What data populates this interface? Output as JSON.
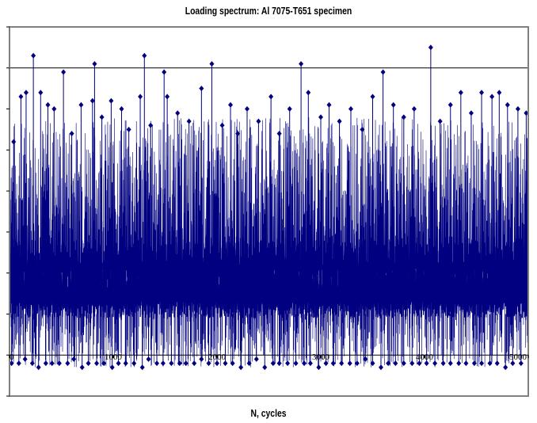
{
  "chart_data": {
    "type": "line",
    "title": "Loading spectrum: Al 7075-T651 specimen",
    "xlabel": "N, cycles",
    "ylabel": "",
    "xlim": [
      0,
      5000
    ],
    "ylim": [
      -1,
      8
    ],
    "x_ticks": [
      0,
      1000,
      2000,
      3000,
      4000,
      5000
    ],
    "x_tick_labels": [
      "0",
      "1000",
      "2000",
      "3000",
      "4000",
      "5000"
    ],
    "y_ticks": [
      -1,
      0,
      1,
      2,
      3,
      4,
      5,
      6,
      7,
      8
    ],
    "y_gridlines": [
      7,
      8
    ],
    "grid": "horizontal",
    "series": [
      {
        "color": "#000080",
        "marker": "diamond",
        "peaks": [
          {
            "x": 40,
            "y": 5.2
          },
          {
            "x": 110,
            "y": 6.3
          },
          {
            "x": 160,
            "y": 6.4
          },
          {
            "x": 230,
            "y": 7.3
          },
          {
            "x": 300,
            "y": 6.4
          },
          {
            "x": 370,
            "y": 6.1
          },
          {
            "x": 430,
            "y": 6.0
          },
          {
            "x": 520,
            "y": 6.9
          },
          {
            "x": 600,
            "y": 5.4
          },
          {
            "x": 690,
            "y": 6.1
          },
          {
            "x": 800,
            "y": 6.2
          },
          {
            "x": 820,
            "y": 7.1
          },
          {
            "x": 890,
            "y": 5.8
          },
          {
            "x": 980,
            "y": 6.2
          },
          {
            "x": 1080,
            "y": 6.0
          },
          {
            "x": 1150,
            "y": 5.5
          },
          {
            "x": 1260,
            "y": 6.3
          },
          {
            "x": 1300,
            "y": 7.3
          },
          {
            "x": 1360,
            "y": 5.6
          },
          {
            "x": 1490,
            "y": 6.9
          },
          {
            "x": 1520,
            "y": 6.3
          },
          {
            "x": 1620,
            "y": 5.9
          },
          {
            "x": 1730,
            "y": 5.7
          },
          {
            "x": 1850,
            "y": 6.5
          },
          {
            "x": 1950,
            "y": 7.1
          },
          {
            "x": 2050,
            "y": 5.6
          },
          {
            "x": 2130,
            "y": 6.1
          },
          {
            "x": 2200,
            "y": 5.4
          },
          {
            "x": 2290,
            "y": 6.0
          },
          {
            "x": 2400,
            "y": 5.7
          },
          {
            "x": 2520,
            "y": 6.3
          },
          {
            "x": 2600,
            "y": 5.4
          },
          {
            "x": 2700,
            "y": 6.0
          },
          {
            "x": 2810,
            "y": 7.1
          },
          {
            "x": 2880,
            "y": 6.4
          },
          {
            "x": 3000,
            "y": 5.8
          },
          {
            "x": 3080,
            "y": 6.1
          },
          {
            "x": 3180,
            "y": 5.7
          },
          {
            "x": 3290,
            "y": 6.0
          },
          {
            "x": 3400,
            "y": 5.5
          },
          {
            "x": 3500,
            "y": 6.3
          },
          {
            "x": 3600,
            "y": 6.9
          },
          {
            "x": 3700,
            "y": 6.1
          },
          {
            "x": 3800,
            "y": 5.8
          },
          {
            "x": 3900,
            "y": 6.0
          },
          {
            "x": 4060,
            "y": 7.5
          },
          {
            "x": 4150,
            "y": 5.7
          },
          {
            "x": 4250,
            "y": 6.1
          },
          {
            "x": 4350,
            "y": 6.4
          },
          {
            "x": 4450,
            "y": 5.9
          },
          {
            "x": 4550,
            "y": 6.4
          },
          {
            "x": 4650,
            "y": 6.3
          },
          {
            "x": 4720,
            "y": 6.4
          },
          {
            "x": 4800,
            "y": 6.1
          },
          {
            "x": 4900,
            "y": 6.0
          },
          {
            "x": 4980,
            "y": 5.9
          }
        ],
        "troughs": [
          {
            "x": 20,
            "y": -0.2
          },
          {
            "x": 90,
            "y": -0.2
          },
          {
            "x": 150,
            "y": -0.1
          },
          {
            "x": 220,
            "y": -0.2
          },
          {
            "x": 280,
            "y": -0.3
          },
          {
            "x": 350,
            "y": -0.2
          },
          {
            "x": 410,
            "y": -0.2
          },
          {
            "x": 480,
            "y": -0.2
          },
          {
            "x": 560,
            "y": -0.2
          },
          {
            "x": 620,
            "y": -0.1
          },
          {
            "x": 700,
            "y": -0.3
          },
          {
            "x": 760,
            "y": -0.2
          },
          {
            "x": 840,
            "y": -0.2
          },
          {
            "x": 910,
            "y": -0.2
          },
          {
            "x": 990,
            "y": -0.3
          },
          {
            "x": 1050,
            "y": -0.2
          },
          {
            "x": 1120,
            "y": -0.2
          },
          {
            "x": 1200,
            "y": -0.2
          },
          {
            "x": 1280,
            "y": -0.3
          },
          {
            "x": 1340,
            "y": -0.1
          },
          {
            "x": 1420,
            "y": -0.2
          },
          {
            "x": 1480,
            "y": -0.2
          },
          {
            "x": 1560,
            "y": -0.2
          },
          {
            "x": 1640,
            "y": -0.2
          },
          {
            "x": 1700,
            "y": -0.2
          },
          {
            "x": 1780,
            "y": -0.2
          },
          {
            "x": 1850,
            "y": -0.1
          },
          {
            "x": 1920,
            "y": -0.2
          },
          {
            "x": 2000,
            "y": -0.2
          },
          {
            "x": 2080,
            "y": -0.2
          },
          {
            "x": 2150,
            "y": -0.2
          },
          {
            "x": 2230,
            "y": -0.3
          },
          {
            "x": 2310,
            "y": -0.2
          },
          {
            "x": 2380,
            "y": -0.1
          },
          {
            "x": 2460,
            "y": -0.3
          },
          {
            "x": 2540,
            "y": -0.2
          },
          {
            "x": 2600,
            "y": -0.2
          },
          {
            "x": 2680,
            "y": -0.2
          },
          {
            "x": 2760,
            "y": -0.2
          },
          {
            "x": 2840,
            "y": -0.2
          },
          {
            "x": 2900,
            "y": -0.2
          },
          {
            "x": 2980,
            "y": -0.3
          },
          {
            "x": 3050,
            "y": -0.2
          },
          {
            "x": 3120,
            "y": -0.2
          },
          {
            "x": 3200,
            "y": -0.2
          },
          {
            "x": 3280,
            "y": -0.2
          },
          {
            "x": 3350,
            "y": -0.2
          },
          {
            "x": 3430,
            "y": -0.1
          },
          {
            "x": 3500,
            "y": -0.2
          },
          {
            "x": 3580,
            "y": -0.3
          },
          {
            "x": 3650,
            "y": -0.2
          },
          {
            "x": 3720,
            "y": -0.2
          },
          {
            "x": 3800,
            "y": -0.2
          },
          {
            "x": 3880,
            "y": -0.2
          },
          {
            "x": 3950,
            "y": -0.2
          },
          {
            "x": 4020,
            "y": -0.2
          },
          {
            "x": 4100,
            "y": -0.2
          },
          {
            "x": 4180,
            "y": -0.2
          },
          {
            "x": 4250,
            "y": -0.2
          },
          {
            "x": 4330,
            "y": -0.2
          },
          {
            "x": 4400,
            "y": -0.2
          },
          {
            "x": 4480,
            "y": -0.2
          },
          {
            "x": 4550,
            "y": -0.2
          },
          {
            "x": 4630,
            "y": -0.2
          },
          {
            "x": 4700,
            "y": -0.2
          },
          {
            "x": 4780,
            "y": -0.3
          },
          {
            "x": 4850,
            "y": -0.2
          },
          {
            "x": 4930,
            "y": -0.2
          }
        ]
      }
    ]
  }
}
